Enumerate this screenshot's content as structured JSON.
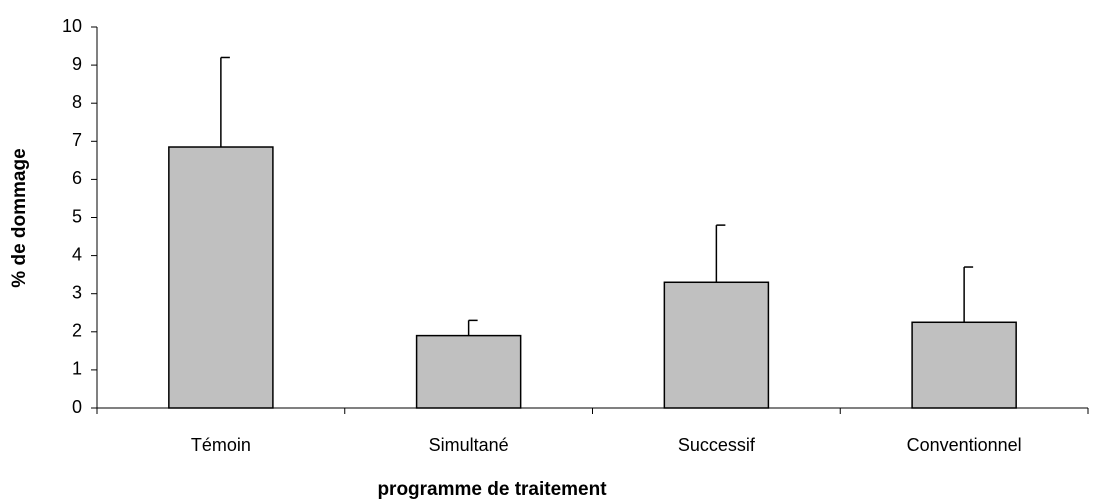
{
  "chart_data": {
    "type": "bar",
    "categories": [
      "Témoin",
      "Simultané",
      "Successif",
      "Conventionnel"
    ],
    "values": [
      6.85,
      1.9,
      3.3,
      2.25
    ],
    "errors": [
      2.35,
      0.4,
      1.5,
      1.45
    ],
    "color": "#c0c0c0",
    "x_label": "programme de traitement",
    "y_label": "% de dommage",
    "ylim": [
      0,
      10
    ],
    "yticks": [
      0,
      1,
      2,
      3,
      4,
      5,
      6,
      7,
      8,
      9,
      10
    ],
    "grid": false
  }
}
